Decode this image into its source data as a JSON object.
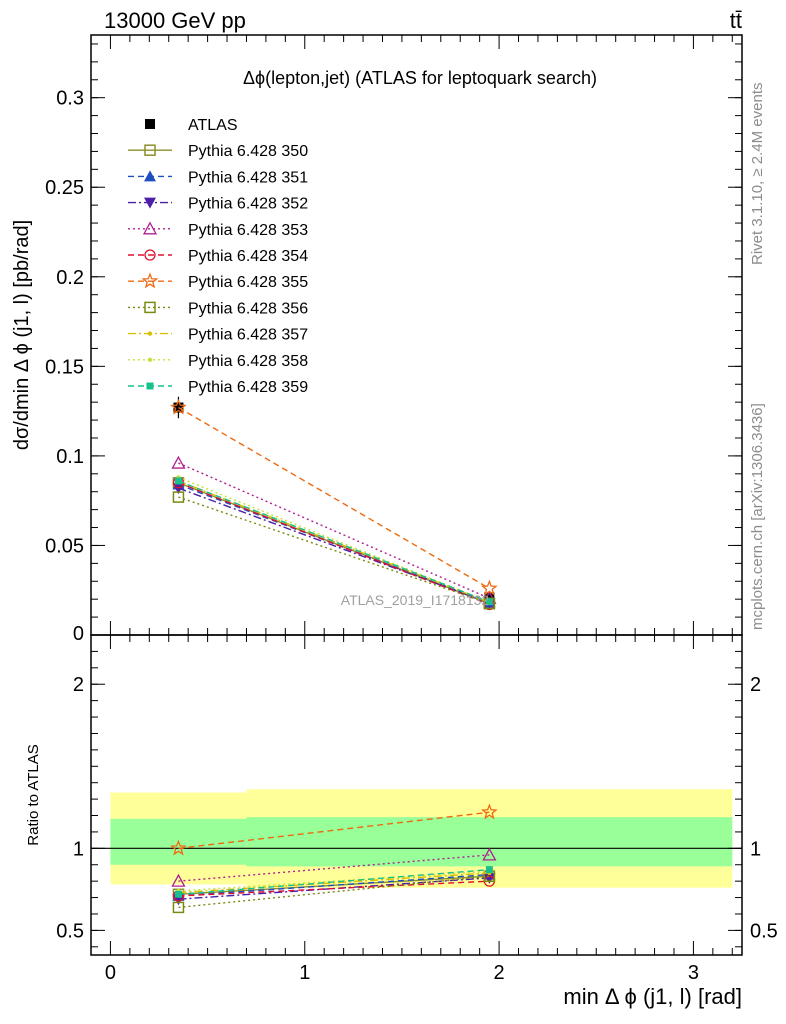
{
  "header": {
    "energy": "13000 GeV pp",
    "process": "tt̄",
    "rivet": "Rivet 3.1.10, ≥ 2.4M events",
    "mcplots": "mcplots.cern.ch [arXiv:1306.3436]"
  },
  "chart_data": [
    {
      "type": "line",
      "title": "Δϕ(lepton,jet) (ATLAS for leptoquark search)",
      "watermark": "ATLAS_2019_I1718132",
      "ylabel": "dσ/dmin Δ ϕ (j1, l) [pb/rad]",
      "xlim": [
        -0.1,
        3.25
      ],
      "ylim": [
        0,
        0.335
      ],
      "yticks": [
        0.05,
        0.1,
        0.15,
        0.2,
        0.25,
        0.3
      ],
      "ytick_labels": [
        "0.05",
        "0.1",
        "0.15",
        "0.2",
        "0.25",
        "0.3"
      ],
      "ytick_zero_label": "0",
      "x": [
        0.35,
        1.95
      ],
      "legend_position": "top-left",
      "series": [
        {
          "name": "ATLAS",
          "color": "#000000",
          "marker": "filled-square",
          "values": [
            0.127,
            0.021
          ],
          "errors": [
            0.006,
            0.002
          ]
        },
        {
          "name": "Pythia 6.428 350",
          "color": "#8e8e2a",
          "marker": "open-square",
          "line": "solid",
          "values": [
            0.085,
            0.0175
          ]
        },
        {
          "name": "Pythia 6.428 351",
          "color": "#1f4fbf",
          "marker": "filled-triangle",
          "line": "dashed",
          "values": [
            0.084,
            0.018
          ]
        },
        {
          "name": "Pythia 6.428 352",
          "color": "#4b1fa8",
          "marker": "filled-triangle-down",
          "line": "dashdot",
          "values": [
            0.082,
            0.0178
          ]
        },
        {
          "name": "Pythia 6.428 353",
          "color": "#b0208f",
          "marker": "open-triangle",
          "line": "dotted",
          "values": [
            0.096,
            0.0205
          ]
        },
        {
          "name": "Pythia 6.428 354",
          "color": "#dd1030",
          "marker": "open-circle",
          "line": "dashed",
          "values": [
            0.085,
            0.017
          ]
        },
        {
          "name": "Pythia 6.428 355",
          "color": "#ee6a10",
          "marker": "open-star",
          "line": "dashed",
          "values": [
            0.127,
            0.026
          ]
        },
        {
          "name": "Pythia 6.428 356",
          "color": "#7a8a10",
          "marker": "open-square",
          "line": "dotted",
          "values": [
            0.077,
            0.0176
          ]
        },
        {
          "name": "Pythia 6.428 357",
          "color": "#d9c000",
          "marker": "small-dot",
          "line": "dashdot",
          "values": [
            0.086,
            0.0182
          ]
        },
        {
          "name": "Pythia 6.428 358",
          "color": "#c8e03c",
          "marker": "small-dot",
          "line": "dotted",
          "values": [
            0.088,
            0.0184
          ]
        },
        {
          "name": "Pythia 6.428 359",
          "color": "#17c08c",
          "marker": "filled-square-small",
          "line": "dashed",
          "values": [
            0.086,
            0.0185
          ]
        }
      ]
    },
    {
      "type": "line",
      "ylabel": "Ratio to ATLAS",
      "xlabel": "min Δ ϕ (j1, l) [rad]",
      "xlim": [
        -0.1,
        3.25
      ],
      "ylim": [
        0.35,
        2.3
      ],
      "xticks": [
        0,
        1,
        2,
        3
      ],
      "xtick_labels": [
        "0",
        "1",
        "2",
        "3"
      ],
      "yticks": [
        0.5,
        1,
        2
      ],
      "ytick_labels": [
        "0.5",
        "1",
        "2"
      ],
      "bands": [
        {
          "xrange": [
            0,
            0.7
          ],
          "yellow": [
            0.78,
            1.34
          ],
          "green": [
            0.9,
            1.18
          ]
        },
        {
          "xrange": [
            0.7,
            3.2
          ],
          "yellow": [
            0.76,
            1.36
          ],
          "green": [
            0.89,
            1.19
          ]
        }
      ],
      "reference": 1,
      "x": [
        0.35,
        1.95
      ],
      "series": [
        {
          "name": "Pythia 6.428 350",
          "values": [
            0.72,
            0.83
          ]
        },
        {
          "name": "Pythia 6.428 351",
          "values": [
            0.71,
            0.84
          ]
        },
        {
          "name": "Pythia 6.428 352",
          "values": [
            0.69,
            0.82
          ]
        },
        {
          "name": "Pythia 6.428 353",
          "values": [
            0.8,
            0.96
          ]
        },
        {
          "name": "Pythia 6.428 354",
          "values": [
            0.71,
            0.8
          ]
        },
        {
          "name": "Pythia 6.428 355",
          "values": [
            1.0,
            1.22
          ]
        },
        {
          "name": "Pythia 6.428 356",
          "values": [
            0.64,
            0.83
          ]
        },
        {
          "name": "Pythia 6.428 357",
          "values": [
            0.73,
            0.85
          ]
        },
        {
          "name": "Pythia 6.428 358",
          "values": [
            0.74,
            0.86
          ]
        },
        {
          "name": "Pythia 6.428 359",
          "values": [
            0.72,
            0.87
          ]
        }
      ]
    }
  ]
}
